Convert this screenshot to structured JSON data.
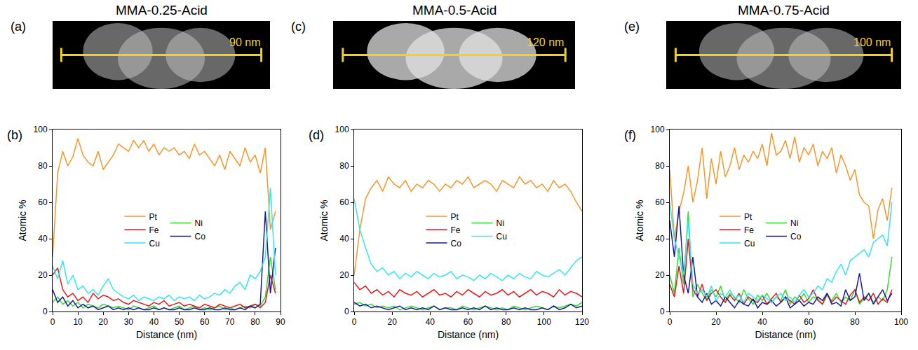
{
  "images": [
    {
      "letter": "(a)",
      "title": "MMA-0.25-Acid",
      "scale_bar": "90 nm"
    },
    {
      "letter": "(c)",
      "title": "MMA-0.5-Acid",
      "scale_bar": "120 nm"
    },
    {
      "letter": "(e)",
      "title": "MMA-0.75-Acid",
      "scale_bar": "100 nm"
    }
  ],
  "chart_data": [
    {
      "type": "line",
      "annotations": [
        "(b)"
      ],
      "x_label": "Distance (nm)",
      "y_label": "Atomic %",
      "xlim": [
        0,
        90
      ],
      "xticks": [
        0,
        10,
        20,
        30,
        40,
        50,
        60,
        70,
        80,
        90
      ],
      "ylim": [
        0,
        100
      ],
      "yticks": [
        0,
        20,
        40,
        60,
        80,
        100
      ],
      "grid": false,
      "legend": "center",
      "x": [
        0,
        2,
        4,
        6,
        8,
        10,
        12,
        14,
        16,
        18,
        20,
        22,
        24,
        26,
        28,
        30,
        32,
        34,
        36,
        38,
        40,
        42,
        44,
        46,
        48,
        50,
        52,
        54,
        56,
        58,
        60,
        62,
        64,
        66,
        68,
        70,
        72,
        74,
        76,
        78,
        80,
        82,
        84,
        86,
        88
      ],
      "series": [
        {
          "name": "Pt",
          "color": "#F5962A",
          "values": [
            30,
            76,
            88,
            80,
            85,
            95,
            86,
            82,
            80,
            88,
            78,
            82,
            86,
            92,
            90,
            88,
            94,
            90,
            94,
            88,
            92,
            86,
            90,
            88,
            90,
            86,
            88,
            84,
            92,
            86,
            88,
            84,
            80,
            86,
            78,
            88,
            84,
            80,
            90,
            82,
            86,
            76,
            90,
            45,
            55
          ]
        },
        {
          "name": "Ni",
          "color": "#33DD33",
          "values": [
            5,
            8,
            4,
            6,
            3,
            5,
            2,
            4,
            3,
            2,
            4,
            3,
            2,
            3,
            2,
            1,
            3,
            2,
            1,
            2,
            3,
            1,
            2,
            1,
            2,
            3,
            1,
            2,
            3,
            1,
            2,
            1,
            2,
            3,
            1,
            2,
            1,
            2,
            3,
            2,
            4,
            3,
            8,
            30,
            12
          ]
        },
        {
          "name": "Fe",
          "color": "#E31A1C",
          "values": [
            20,
            24,
            12,
            8,
            10,
            6,
            8,
            5,
            10,
            7,
            9,
            8,
            6,
            7,
            5,
            4,
            6,
            5,
            4,
            3,
            5,
            4,
            6,
            3,
            4,
            5,
            3,
            4,
            3,
            2,
            4,
            3,
            2,
            4,
            3,
            2,
            3,
            4,
            2,
            3,
            4,
            2,
            5,
            20,
            10
          ]
        },
        {
          "name": "Co",
          "color": "#1A1A99",
          "values": [
            12,
            5,
            8,
            3,
            6,
            2,
            4,
            2,
            3,
            1,
            2,
            3,
            1,
            2,
            1,
            2,
            1,
            2,
            1,
            1,
            2,
            1,
            2,
            1,
            1,
            2,
            1,
            1,
            2,
            1,
            1,
            2,
            1,
            1,
            2,
            1,
            1,
            2,
            1,
            3,
            2,
            4,
            55,
            10,
            35
          ]
        },
        {
          "name": "Cu",
          "color": "#33E6F2",
          "values": [
            25,
            18,
            28,
            15,
            20,
            12,
            14,
            10,
            12,
            9,
            14,
            18,
            12,
            10,
            8,
            7,
            9,
            6,
            8,
            7,
            6,
            8,
            7,
            9,
            6,
            8,
            7,
            8,
            6,
            9,
            7,
            8,
            10,
            9,
            12,
            10,
            14,
            16,
            12,
            20,
            18,
            22,
            30,
            68,
            20
          ]
        }
      ]
    },
    {
      "type": "line",
      "annotations": [
        "(d)"
      ],
      "x_label": "Distance (nm)",
      "y_label": "Atomic %",
      "xlim": [
        0,
        120
      ],
      "xticks": [
        0,
        20,
        40,
        60,
        80,
        100,
        120
      ],
      "ylim": [
        0,
        100
      ],
      "yticks": [
        0,
        20,
        40,
        60,
        80,
        100
      ],
      "grid": false,
      "legend": "center",
      "x": [
        0,
        3,
        6,
        9,
        12,
        15,
        18,
        21,
        24,
        27,
        30,
        33,
        36,
        39,
        42,
        45,
        48,
        51,
        54,
        57,
        60,
        63,
        66,
        69,
        72,
        75,
        78,
        81,
        84,
        87,
        90,
        93,
        96,
        99,
        102,
        105,
        108,
        111,
        114,
        117,
        120
      ],
      "series": [
        {
          "name": "Pt",
          "color": "#F5962A",
          "values": [
            20,
            45,
            62,
            68,
            72,
            66,
            74,
            70,
            68,
            72,
            66,
            70,
            68,
            72,
            70,
            66,
            70,
            68,
            72,
            70,
            74,
            68,
            70,
            72,
            70,
            66,
            72,
            70,
            68,
            74,
            70,
            72,
            68,
            70,
            66,
            72,
            68,
            70,
            66,
            60,
            55
          ]
        },
        {
          "name": "Ni",
          "color": "#33DD33",
          "values": [
            4,
            5,
            3,
            4,
            2,
            3,
            2,
            3,
            1,
            2,
            3,
            2,
            1,
            2,
            3,
            1,
            2,
            2,
            1,
            3,
            2,
            1,
            2,
            3,
            2,
            1,
            2,
            1,
            3,
            2,
            1,
            2,
            3,
            2,
            1,
            3,
            2,
            3,
            4,
            3,
            5
          ]
        },
        {
          "name": "Fe",
          "color": "#E31A1C",
          "values": [
            16,
            12,
            14,
            10,
            12,
            9,
            11,
            8,
            12,
            10,
            9,
            11,
            8,
            10,
            12,
            9,
            10,
            8,
            11,
            9,
            12,
            10,
            8,
            11,
            9,
            10,
            12,
            9,
            11,
            8,
            10,
            12,
            9,
            11,
            10,
            8,
            12,
            9,
            11,
            10,
            8
          ]
        },
        {
          "name": "Cu",
          "color": "#33E6F2",
          "values": [
            62,
            45,
            35,
            26,
            22,
            24,
            20,
            22,
            18,
            21,
            19,
            22,
            20,
            18,
            21,
            19,
            20,
            22,
            18,
            20,
            19,
            17,
            20,
            18,
            21,
            19,
            17,
            20,
            18,
            21,
            19,
            18,
            22,
            20,
            19,
            21,
            23,
            20,
            24,
            28,
            30
          ]
        },
        {
          "name": "Co",
          "color": "#1A1A99",
          "values": [
            5,
            3,
            4,
            2,
            3,
            2,
            1,
            2,
            3,
            1,
            2,
            1,
            2,
            1,
            3,
            1,
            2,
            1,
            1,
            2,
            1,
            2,
            1,
            3,
            1,
            2,
            1,
            1,
            2,
            1,
            2,
            1,
            1,
            2,
            1,
            3,
            1,
            2,
            4,
            2,
            3
          ]
        }
      ]
    },
    {
      "type": "line",
      "annotations": [
        "(f)"
      ],
      "x_label": "Distance (nm)",
      "y_label": "Atomic %",
      "xlim": [
        0,
        100
      ],
      "xticks": [
        0,
        20,
        40,
        60,
        80,
        100
      ],
      "ylim": [
        0,
        100
      ],
      "yticks": [
        0,
        20,
        40,
        60,
        80,
        100
      ],
      "grid": false,
      "legend": "center",
      "x": [
        0,
        2,
        4,
        6,
        8,
        10,
        12,
        14,
        16,
        18,
        20,
        22,
        24,
        26,
        28,
        30,
        32,
        34,
        36,
        38,
        40,
        42,
        44,
        46,
        48,
        50,
        52,
        54,
        56,
        58,
        60,
        62,
        64,
        66,
        68,
        70,
        72,
        74,
        76,
        78,
        80,
        82,
        84,
        86,
        88,
        90,
        92,
        94,
        96
      ],
      "series": [
        {
          "name": "Pt",
          "color": "#F5962A",
          "values": [
            78,
            40,
            55,
            65,
            80,
            60,
            72,
            90,
            62,
            84,
            70,
            88,
            74,
            80,
            90,
            78,
            86,
            82,
            88,
            84,
            92,
            80,
            98,
            86,
            88,
            94,
            84,
            96,
            82,
            90,
            86,
            92,
            80,
            88,
            84,
            90,
            76,
            86,
            80,
            72,
            78,
            64,
            60,
            58,
            40,
            56,
            62,
            50,
            68
          ]
        },
        {
          "name": "Ni",
          "color": "#33DD33",
          "values": [
            20,
            10,
            35,
            15,
            55,
            8,
            15,
            10,
            6,
            12,
            8,
            14,
            6,
            10,
            8,
            5,
            12,
            7,
            4,
            9,
            6,
            10,
            5,
            8,
            6,
            12,
            4,
            8,
            6,
            10,
            5,
            8,
            7,
            4,
            9,
            6,
            10,
            5,
            8,
            6,
            12,
            4,
            7,
            10,
            5,
            8,
            6,
            12,
            30
          ]
        },
        {
          "name": "Fe",
          "color": "#E31A1C",
          "values": [
            15,
            8,
            25,
            10,
            40,
            12,
            8,
            15,
            6,
            10,
            12,
            8,
            5,
            9,
            6,
            10,
            4,
            8,
            6,
            5,
            9,
            4,
            7,
            10,
            5,
            8,
            6,
            4,
            9,
            5,
            7,
            12,
            6,
            4,
            10,
            5,
            8,
            6,
            4,
            9,
            12,
            5,
            8,
            6,
            10,
            4,
            7,
            5,
            12
          ]
        },
        {
          "name": "Co",
          "color": "#1A1A99",
          "values": [
            50,
            30,
            58,
            20,
            10,
            30,
            8,
            5,
            10,
            4,
            6,
            3,
            8,
            5,
            2,
            6,
            4,
            3,
            7,
            2,
            5,
            4,
            6,
            3,
            5,
            8,
            2,
            4,
            6,
            3,
            5,
            4,
            8,
            6,
            10,
            4,
            5,
            3,
            12,
            6,
            8,
            21,
            6,
            10,
            4,
            8,
            12,
            6,
            10
          ]
        },
        {
          "name": "Cu",
          "color": "#33E6F2",
          "values": [
            60,
            40,
            30,
            20,
            50,
            15,
            10,
            12,
            8,
            14,
            6,
            10,
            8,
            12,
            7,
            9,
            5,
            10,
            8,
            6,
            9,
            7,
            5,
            8,
            10,
            6,
            8,
            5,
            9,
            12,
            8,
            10,
            14,
            12,
            18,
            16,
            22,
            26,
            20,
            28,
            30,
            32,
            34,
            30,
            38,
            40,
            42,
            36,
            60
          ]
        }
      ]
    }
  ]
}
